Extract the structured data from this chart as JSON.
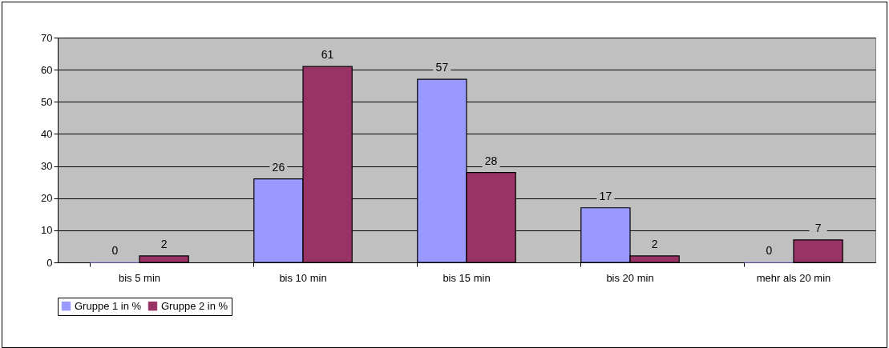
{
  "chart_data": {
    "type": "bar",
    "categories": [
      "bis 5 min",
      "bis 10 min",
      "bis 15 min",
      "bis 20 min",
      "mehr als 20 min"
    ],
    "series": [
      {
        "name": "Gruppe 1 in %",
        "color": "#9999ff",
        "values": [
          0,
          26,
          57,
          17,
          0
        ]
      },
      {
        "name": "Gruppe 2 in %",
        "color": "#993366",
        "values": [
          2,
          61,
          28,
          2,
          7
        ]
      }
    ],
    "ylim": [
      0,
      70
    ],
    "yticks": [
      0,
      10,
      20,
      30,
      40,
      50,
      60,
      70
    ],
    "grid": "y",
    "legend": "bottom",
    "data_labels": true
  }
}
